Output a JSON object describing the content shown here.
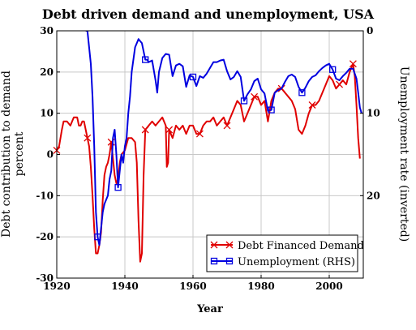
{
  "chart_data": {
    "type": "line",
    "title": "Debt driven demand and unemployment, USA",
    "xlabel": "Year",
    "ylabel": "Debt contribution to demand percent",
    "y2label": "Unemployment rate (inverted)",
    "xlim": [
      1920,
      2010
    ],
    "ylim": [
      -30,
      30
    ],
    "y2lim": [
      0,
      30
    ],
    "y2_inverted": true,
    "x_ticks": [
      1920,
      1940,
      1960,
      1980,
      2000
    ],
    "y_ticks": [
      -30,
      -20,
      -10,
      0,
      10,
      20,
      30
    ],
    "y2_ticks": [
      0,
      10,
      20
    ],
    "grid": true,
    "legend_position": "bottom-right",
    "series": [
      {
        "name": "Debt Financed Demand",
        "axis": "left",
        "color": "#e00000",
        "marker": "x",
        "points": [
          [
            1920,
            1
          ],
          [
            1920.7,
            2
          ],
          [
            1921.5,
            6
          ],
          [
            1922,
            8
          ],
          [
            1923,
            8
          ],
          [
            1924,
            7
          ],
          [
            1925,
            9
          ],
          [
            1926,
            9
          ],
          [
            1926.5,
            7
          ],
          [
            1927,
            7
          ],
          [
            1927.5,
            8
          ],
          [
            1928,
            8
          ],
          [
            1928.5,
            6
          ],
          [
            1929,
            4
          ],
          [
            1929.5,
            2
          ],
          [
            1930,
            -3
          ],
          [
            1930.5,
            -10
          ],
          [
            1931,
            -18
          ],
          [
            1931.5,
            -24
          ],
          [
            1932,
            -24
          ],
          [
            1932.5,
            -22
          ],
          [
            1933,
            -19
          ],
          [
            1933.5,
            -11
          ],
          [
            1934,
            -5
          ],
          [
            1934.5,
            -3
          ],
          [
            1935,
            -2
          ],
          [
            1935.5,
            0
          ],
          [
            1936,
            3
          ],
          [
            1936.5,
            -1
          ],
          [
            1937,
            -5
          ],
          [
            1937.5,
            -7
          ],
          [
            1938,
            -6
          ],
          [
            1938.5,
            -2
          ],
          [
            1939,
            0
          ],
          [
            1940,
            1
          ],
          [
            1941,
            4
          ],
          [
            1942,
            4
          ],
          [
            1943,
            3
          ],
          [
            1943.5,
            -2
          ],
          [
            1944,
            -16
          ],
          [
            1944.5,
            -26
          ],
          [
            1945,
            -24
          ],
          [
            1945.5,
            -5
          ],
          [
            1946,
            6
          ],
          [
            1947,
            7
          ],
          [
            1948,
            8
          ],
          [
            1949,
            7
          ],
          [
            1950,
            8
          ],
          [
            1951,
            9
          ],
          [
            1952,
            7
          ],
          [
            1952.3,
            -3
          ],
          [
            1952.7,
            -2
          ],
          [
            1953,
            6
          ],
          [
            1953.5,
            5
          ],
          [
            1954,
            4
          ],
          [
            1955,
            7
          ],
          [
            1956,
            6
          ],
          [
            1957,
            7
          ],
          [
            1958,
            5
          ],
          [
            1959,
            7
          ],
          [
            1960,
            7
          ],
          [
            1961,
            5
          ],
          [
            1962,
            5
          ],
          [
            1963,
            7
          ],
          [
            1964,
            8
          ],
          [
            1965,
            8
          ],
          [
            1966,
            9
          ],
          [
            1967,
            7
          ],
          [
            1968,
            8
          ],
          [
            1969,
            9
          ],
          [
            1970,
            7
          ],
          [
            1971,
            9
          ],
          [
            1972,
            11
          ],
          [
            1973,
            13
          ],
          [
            1974,
            12
          ],
          [
            1975,
            8
          ],
          [
            1976,
            10
          ],
          [
            1977,
            12
          ],
          [
            1978,
            14
          ],
          [
            1979,
            14
          ],
          [
            1980,
            12
          ],
          [
            1981,
            13
          ],
          [
            1982,
            8
          ],
          [
            1983,
            13
          ],
          [
            1984,
            15
          ],
          [
            1985,
            16
          ],
          [
            1986,
            16
          ],
          [
            1987,
            15
          ],
          [
            1988,
            14
          ],
          [
            1989,
            13
          ],
          [
            1990,
            11
          ],
          [
            1991,
            6
          ],
          [
            1992,
            5
          ],
          [
            1993,
            7
          ],
          [
            1994,
            10
          ],
          [
            1995,
            12
          ],
          [
            1996,
            12
          ],
          [
            1997,
            13
          ],
          [
            1998,
            15
          ],
          [
            1999,
            17
          ],
          [
            2000,
            19
          ],
          [
            2001,
            18
          ],
          [
            2002,
            16
          ],
          [
            2003,
            17
          ],
          [
            2004,
            18
          ],
          [
            2005,
            17
          ],
          [
            2006,
            20
          ],
          [
            2007,
            22
          ],
          [
            2007.5,
            19
          ],
          [
            2008,
            12
          ],
          [
            2008.5,
            4
          ],
          [
            2009,
            -1
          ]
        ],
        "marker_x": [
          1920,
          1929,
          1936,
          1946,
          1953,
          1962,
          1970,
          1978,
          1986,
          1995,
          2003,
          2007
        ]
      },
      {
        "name": "Unemployment (RHS)",
        "axis": "right",
        "color": "#0000e0",
        "marker": "square",
        "points": [
          [
            1928.5,
            0
          ],
          [
            1929,
            0
          ],
          [
            1929.5,
            2
          ],
          [
            1930,
            4
          ],
          [
            1930.5,
            8
          ],
          [
            1931,
            14
          ],
          [
            1931.5,
            22
          ],
          [
            1932,
            25
          ],
          [
            1932.5,
            26
          ],
          [
            1933,
            24
          ],
          [
            1933.5,
            22
          ],
          [
            1934,
            21
          ],
          [
            1935,
            20
          ],
          [
            1935.5,
            18
          ],
          [
            1936,
            17
          ],
          [
            1936.5,
            13
          ],
          [
            1937,
            12
          ],
          [
            1937.5,
            15
          ],
          [
            1938,
            19
          ],
          [
            1938.5,
            17
          ],
          [
            1939,
            15
          ],
          [
            1939.5,
            16
          ],
          [
            1940,
            14
          ],
          [
            1940.5,
            13
          ],
          [
            1941,
            10
          ],
          [
            1941.5,
            8
          ],
          [
            1942,
            5
          ],
          [
            1943,
            2
          ],
          [
            1943.5,
            1.5
          ],
          [
            1944,
            1
          ],
          [
            1945,
            1.5
          ],
          [
            1946,
            3.5
          ],
          [
            1946.5,
            3.5
          ],
          [
            1947,
            3.8
          ],
          [
            1948,
            3.6
          ],
          [
            1949,
            6
          ],
          [
            1949.5,
            7.5
          ],
          [
            1950,
            5
          ],
          [
            1951,
            3.3
          ],
          [
            1952,
            2.8
          ],
          [
            1953,
            2.9
          ],
          [
            1954,
            5.5
          ],
          [
            1955,
            4.2
          ],
          [
            1956,
            4
          ],
          [
            1957,
            4.3
          ],
          [
            1958,
            6.8
          ],
          [
            1959,
            5.4
          ],
          [
            1960,
            5.6
          ],
          [
            1961,
            6.7
          ],
          [
            1962,
            5.5
          ],
          [
            1963,
            5.7
          ],
          [
            1964,
            5.2
          ],
          [
            1965,
            4.5
          ],
          [
            1966,
            3.8
          ],
          [
            1967,
            3.8
          ],
          [
            1968,
            3.6
          ],
          [
            1969,
            3.5
          ],
          [
            1970,
            4.9
          ],
          [
            1971,
            5.9
          ],
          [
            1972,
            5.6
          ],
          [
            1973,
            4.9
          ],
          [
            1974,
            5.6
          ],
          [
            1975,
            8.5
          ],
          [
            1976,
            7.7
          ],
          [
            1977,
            7.1
          ],
          [
            1978,
            6.1
          ],
          [
            1979,
            5.8
          ],
          [
            1980,
            7.1
          ],
          [
            1981,
            7.6
          ],
          [
            1982,
            9.7
          ],
          [
            1983,
            9.6
          ],
          [
            1984,
            7.5
          ],
          [
            1985,
            7.2
          ],
          [
            1986,
            7
          ],
          [
            1987,
            6.2
          ],
          [
            1988,
            5.5
          ],
          [
            1989,
            5.3
          ],
          [
            1990,
            5.6
          ],
          [
            1991,
            6.8
          ],
          [
            1992,
            7.5
          ],
          [
            1993,
            6.9
          ],
          [
            1994,
            6.1
          ],
          [
            1995,
            5.6
          ],
          [
            1996,
            5.4
          ],
          [
            1997,
            4.9
          ],
          [
            1998,
            4.5
          ],
          [
            1999,
            4.2
          ],
          [
            2000,
            4
          ],
          [
            2001,
            4.7
          ],
          [
            2002,
            5.8
          ],
          [
            2003,
            6
          ],
          [
            2004,
            5.5
          ],
          [
            2005,
            5.1
          ],
          [
            2006,
            4.6
          ],
          [
            2007,
            4.6
          ],
          [
            2008,
            5.8
          ],
          [
            2008.5,
            7.5
          ],
          [
            2009,
            9.3
          ],
          [
            2009.5,
            10
          ]
        ],
        "marker_x": [
          1932,
          1938,
          1946,
          1960,
          1975,
          1983,
          1992,
          2001
        ]
      }
    ]
  }
}
